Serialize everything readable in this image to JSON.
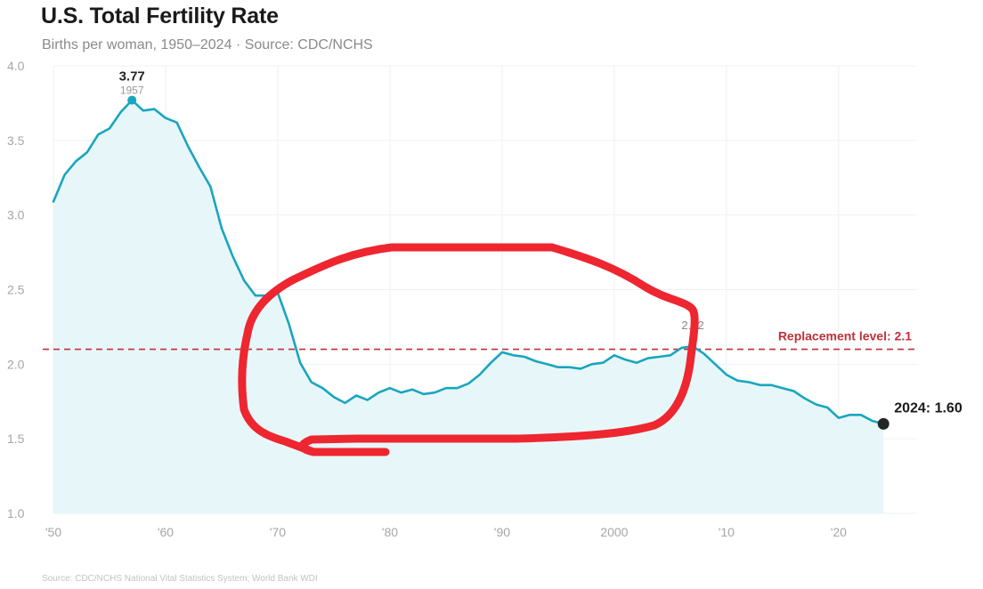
{
  "chart_data": {
    "type": "area",
    "title": "U.S. Total Fertility Rate",
    "subtitle": "Births per woman, 1950–2024 · Source: CDC/NCHS",
    "footer": "Source: CDC/NCHS National Vital Statistics System; World Bank WDI",
    "xlabel": "",
    "ylabel": "",
    "xlim": [
      1950,
      2027
    ],
    "ylim": [
      1.0,
      4.0
    ],
    "grid": true,
    "x_ticks": [
      1950,
      1960,
      1970,
      1980,
      1990,
      2000,
      2010,
      2020
    ],
    "x_tick_labels": [
      "'50",
      "'60",
      "'70",
      "'80",
      "'90",
      "2000",
      "'10",
      "'20"
    ],
    "y_ticks": [
      1.0,
      1.5,
      2.0,
      2.5,
      3.0,
      3.5,
      4.0
    ],
    "y_tick_labels": [
      "1.0",
      "1.5",
      "2.0",
      "2.5",
      "3.0",
      "3.5",
      "4.0"
    ],
    "line_color": "#1aa5bf",
    "fill_color": "#e7f7f9",
    "series": [
      {
        "x": [
          1950,
          1951,
          1952,
          1953,
          1954,
          1955,
          1956,
          1957,
          1958,
          1959,
          1960,
          1961,
          1962,
          1963,
          1964,
          1965,
          1966,
          1967,
          1968,
          1969,
          1970,
          1971,
          1972,
          1973,
          1974,
          1975,
          1976,
          1977,
          1978,
          1979,
          1980,
          1981,
          1982,
          1983,
          1984,
          1985,
          1986,
          1987,
          1988,
          1989,
          1990,
          1991,
          1992,
          1993,
          1994,
          1995,
          1996,
          1997,
          1998,
          1999,
          2000,
          2001,
          2002,
          2003,
          2004,
          2005,
          2006,
          2007,
          2008,
          2009,
          2010,
          2011,
          2012,
          2013,
          2014,
          2015,
          2016,
          2017,
          2018,
          2019,
          2020,
          2021,
          2022,
          2023,
          2024
        ],
        "y": [
          3.09,
          3.27,
          3.36,
          3.42,
          3.54,
          3.58,
          3.69,
          3.77,
          3.7,
          3.71,
          3.65,
          3.62,
          3.46,
          3.32,
          3.19,
          2.91,
          2.72,
          2.56,
          2.46,
          2.46,
          2.48,
          2.27,
          2.01,
          1.88,
          1.84,
          1.78,
          1.74,
          1.79,
          1.76,
          1.81,
          1.84,
          1.81,
          1.83,
          1.8,
          1.81,
          1.84,
          1.84,
          1.87,
          1.93,
          2.01,
          2.08,
          2.06,
          2.05,
          2.02,
          2.0,
          1.98,
          1.98,
          1.97,
          2.0,
          2.01,
          2.06,
          2.03,
          2.01,
          2.04,
          2.05,
          2.06,
          2.11,
          2.12,
          2.07,
          2.0,
          1.93,
          1.89,
          1.88,
          1.86,
          1.86,
          1.84,
          1.82,
          1.77,
          1.73,
          1.71,
          1.64,
          1.66,
          1.66,
          1.62,
          1.6
        ]
      }
    ],
    "reference_line": {
      "y": 2.1,
      "label": "Replacement level: 2.1",
      "color": "#c0313a"
    },
    "annotations": [
      {
        "x": 1957,
        "y": 3.77,
        "value_label": "3.77",
        "year_label": "1957"
      },
      {
        "x": 2007,
        "y": 2.12,
        "value_label": "2.12"
      },
      {
        "x": 2024,
        "y": 1.6,
        "value_label": "2024: 1.60"
      }
    ],
    "overlay": {
      "type": "hand-drawn-circle",
      "color": "#ee2630"
    }
  }
}
